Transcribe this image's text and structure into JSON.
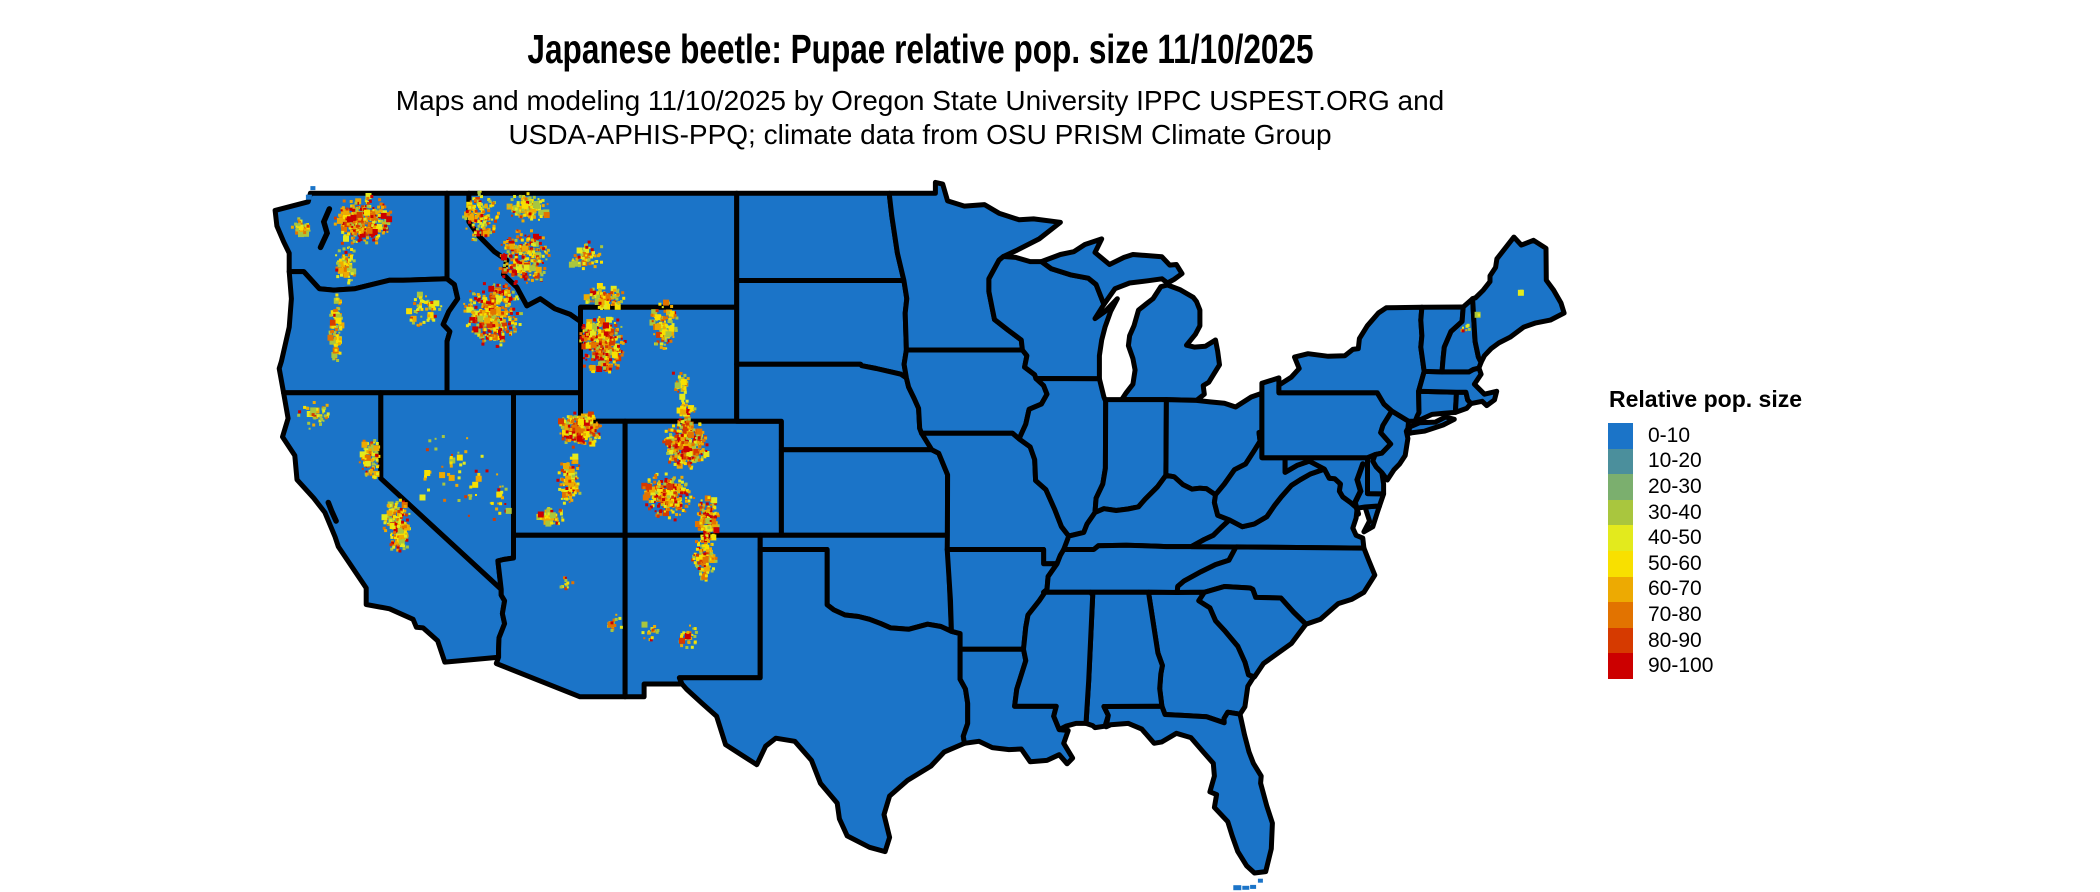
{
  "header": {
    "title": "Japanese beetle: Pupae relative pop. size 11/10/2025",
    "subtitle_line1": "Maps and modeling 11/10/2025 by Oregon State University IPPC USPEST.ORG and",
    "subtitle_line2": "USDA-APHIS-PPQ; climate data from OSU PRISM Climate Group"
  },
  "legend": {
    "title": "Relative pop. size",
    "entries": [
      {
        "label": "0-10",
        "color": "#1B74C8"
      },
      {
        "label": "10-20",
        "color": "#4B8F9C"
      },
      {
        "label": "20-30",
        "color": "#7BAF6E"
      },
      {
        "label": "30-40",
        "color": "#A9C63E"
      },
      {
        "label": "40-50",
        "color": "#E3EA1D"
      },
      {
        "label": "50-60",
        "color": "#F8E000"
      },
      {
        "label": "60-70",
        "color": "#EDAA02"
      },
      {
        "label": "70-80",
        "color": "#E27300"
      },
      {
        "label": "80-90",
        "color": "#D63A00"
      },
      {
        "label": "90-100",
        "color": "#CC0000"
      }
    ]
  },
  "map": {
    "land_color": "#1B74C8",
    "border_color": "#000000",
    "water_color": "#FFFFFF",
    "dot_palette": [
      "#A9C63E",
      "#E3EA1D",
      "#F8E000",
      "#EDAA02",
      "#E27300",
      "#D63A00",
      "#CC0000"
    ],
    "dot_profiles": {
      "hot": [
        0.12,
        0.1,
        0.12,
        0.2,
        0.16,
        0.12,
        0.18
      ],
      "mild": [
        0.2,
        0.14,
        0.18,
        0.22,
        0.14,
        0.07,
        0.05
      ],
      "sparse": [
        0.26,
        0.16,
        0.2,
        0.2,
        0.1,
        0.04,
        0.04
      ]
    },
    "hotspots": [
      {
        "name": "north-cascades-okanogan-wa",
        "lon": -120.8,
        "lat": 48.05,
        "rx": 1.35,
        "ry": 0.9,
        "n": 300,
        "profile": "hot"
      },
      {
        "name": "south-cascades-wa",
        "lon": -121.55,
        "lat": 46.55,
        "rx": 0.5,
        "ry": 0.8,
        "n": 70,
        "profile": "mild"
      },
      {
        "name": "olympic-mountains-wa",
        "lon": -123.6,
        "lat": 47.8,
        "rx": 0.45,
        "ry": 0.35,
        "n": 45,
        "profile": "mild"
      },
      {
        "name": "oregon-cascades",
        "lon": -122.0,
        "lat": 44.2,
        "rx": 0.35,
        "ry": 1.55,
        "n": 80,
        "profile": "sparse"
      },
      {
        "name": "blue-mountains-or",
        "lon": -118.1,
        "lat": 44.9,
        "rx": 0.85,
        "ry": 0.6,
        "n": 55,
        "profile": "sparse"
      },
      {
        "name": "central-idaho-rockies",
        "lon": -115.0,
        "lat": 44.75,
        "rx": 1.35,
        "ry": 1.2,
        "n": 400,
        "profile": "hot"
      },
      {
        "name": "idaho-panhandle-nw-montana",
        "lon": -115.5,
        "lat": 48.2,
        "rx": 0.85,
        "ry": 0.95,
        "n": 140,
        "profile": "mild"
      },
      {
        "name": "glacier-park-mt",
        "lon": -113.35,
        "lat": 48.5,
        "rx": 0.95,
        "ry": 0.55,
        "n": 130,
        "profile": "mild"
      },
      {
        "name": "western-montana-rockies",
        "lon": -113.6,
        "lat": 46.75,
        "rx": 1.25,
        "ry": 1.05,
        "n": 240,
        "profile": "hot"
      },
      {
        "name": "central-montana-ranges",
        "lon": -110.75,
        "lat": 46.8,
        "rx": 0.85,
        "ry": 0.55,
        "n": 60,
        "profile": "sparse"
      },
      {
        "name": "absaroka-beartooth-mt",
        "lon": -109.9,
        "lat": 45.35,
        "rx": 0.95,
        "ry": 0.5,
        "n": 100,
        "profile": "mild"
      },
      {
        "name": "yellowstone-wind-river-wy",
        "lon": -110.05,
        "lat": 43.7,
        "rx": 1.1,
        "ry": 1.15,
        "n": 360,
        "profile": "hot"
      },
      {
        "name": "bighorn-mountains-wy",
        "lon": -107.3,
        "lat": 44.35,
        "rx": 0.6,
        "ry": 0.9,
        "n": 100,
        "profile": "mild"
      },
      {
        "name": "central-wyoming-ranges",
        "lon": -106.6,
        "lat": 42.35,
        "rx": 0.5,
        "ry": 0.55,
        "n": 40,
        "profile": "sparse"
      },
      {
        "name": "snowy-range-wy",
        "lon": -106.3,
        "lat": 41.35,
        "rx": 0.45,
        "ry": 0.4,
        "n": 35,
        "profile": "sparse"
      },
      {
        "name": "wasatch-uinta-ut",
        "lon": -111.05,
        "lat": 40.7,
        "rx": 1.0,
        "ry": 0.65,
        "n": 280,
        "profile": "hot"
      },
      {
        "name": "central-utah-plateaus",
        "lon": -111.55,
        "lat": 38.95,
        "rx": 0.6,
        "ry": 0.95,
        "n": 120,
        "profile": "mild"
      },
      {
        "name": "southern-utah",
        "lon": -112.4,
        "lat": 37.65,
        "rx": 0.65,
        "ry": 0.4,
        "n": 55,
        "profile": "sparse"
      },
      {
        "name": "colorado-front-range",
        "lon": -106.35,
        "lat": 40.2,
        "rx": 1.05,
        "ry": 0.9,
        "n": 360,
        "profile": "hot"
      },
      {
        "name": "san-juan-sawatch-co",
        "lon": -107.15,
        "lat": 38.35,
        "rx": 1.25,
        "ry": 0.85,
        "n": 280,
        "profile": "hot"
      },
      {
        "name": "sangre-de-cristo-co",
        "lon": -105.35,
        "lat": 37.55,
        "rx": 0.55,
        "ry": 0.95,
        "n": 160,
        "profile": "hot"
      },
      {
        "name": "sangre-de-cristo-nm",
        "lon": -105.5,
        "lat": 36.2,
        "rx": 0.6,
        "ry": 0.8,
        "n": 120,
        "profile": "mild"
      },
      {
        "name": "sacramento-mts-nm",
        "lon": -106.2,
        "lat": 33.45,
        "rx": 0.5,
        "ry": 0.45,
        "n": 28,
        "profile": "sparse"
      },
      {
        "name": "mogollon-nm",
        "lon": -107.9,
        "lat": 33.6,
        "rx": 0.45,
        "ry": 0.35,
        "n": 18,
        "profile": "sparse"
      },
      {
        "name": "northern-sierra-ca",
        "lon": -120.45,
        "lat": 39.7,
        "rx": 0.55,
        "ry": 0.75,
        "n": 90,
        "profile": "mild"
      },
      {
        "name": "southern-sierra-ca",
        "lon": -119.25,
        "lat": 37.35,
        "rx": 0.65,
        "ry": 1.05,
        "n": 160,
        "profile": "mild"
      },
      {
        "name": "klamath-trinity-ca",
        "lon": -122.95,
        "lat": 41.2,
        "rx": 0.8,
        "ry": 0.55,
        "n": 45,
        "profile": "sparse"
      },
      {
        "name": "nevada-ranges",
        "lon": -116.8,
        "lat": 39.2,
        "rx": 1.7,
        "ry": 1.8,
        "n": 45,
        "profile": "sparse"
      },
      {
        "name": "eastern-nevada",
        "lon": -114.7,
        "lat": 38.2,
        "rx": 0.5,
        "ry": 1.0,
        "n": 18,
        "profile": "sparse"
      },
      {
        "name": "san-francisco-peaks-az",
        "lon": -111.7,
        "lat": 35.3,
        "rx": 0.35,
        "ry": 0.25,
        "n": 12,
        "profile": "sparse"
      },
      {
        "name": "white-mountains-az",
        "lon": -109.65,
        "lat": 33.95,
        "rx": 0.55,
        "ry": 0.35,
        "n": 16,
        "profile": "sparse"
      },
      {
        "name": "white-mountains-nh",
        "lon": -71.4,
        "lat": 44.25,
        "rx": 0.3,
        "ry": 0.18,
        "n": 7,
        "profile": "sparse"
      },
      {
        "name": "western-maine",
        "lon": -70.75,
        "lat": 44.75,
        "rx": 0.2,
        "ry": 0.12,
        "n": 4,
        "profile": "sparse"
      },
      {
        "name": "central-maine",
        "lon": -68.95,
        "lat": 45.55,
        "rx": 0.12,
        "ry": 0.1,
        "n": 3,
        "profile": "sparse"
      }
    ]
  }
}
